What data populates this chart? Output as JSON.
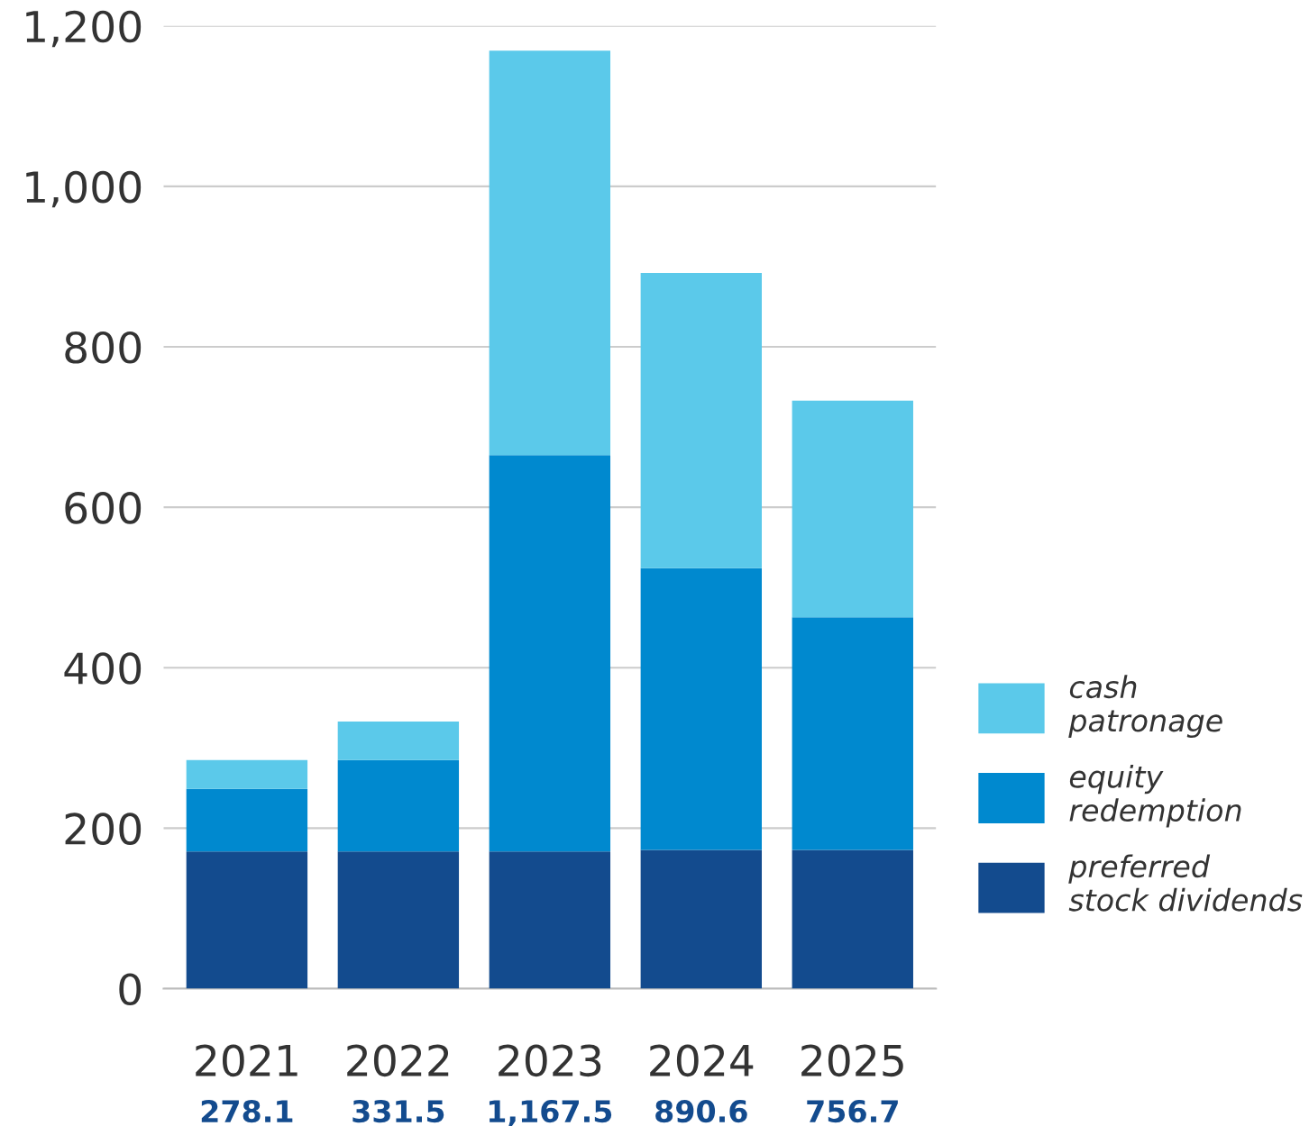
{
  "chart_data": {
    "type": "bar",
    "stacked": true,
    "categories": [
      "2021",
      "2022",
      "2023",
      "2024",
      "2025"
    ],
    "series": [
      {
        "name": "preferred\nstock dividends",
        "color": "#134b8e",
        "values": [
          171,
          171,
          171,
          173,
          173
        ]
      },
      {
        "name": "equity\nredemption",
        "color": "#0089cf",
        "values": [
          78,
          114,
          494,
          351,
          290
        ]
      },
      {
        "name": "cash\npatronage",
        "color": "#5bc9ea",
        "values": [
          36,
          48,
          504,
          368,
          270
        ]
      }
    ],
    "annotations": [
      "278.1",
      "331.5",
      "1,167.5",
      "890.6",
      "756.7"
    ],
    "ylim": [
      0,
      1200
    ],
    "yticks": [
      {
        "value": 0,
        "label": "0"
      },
      {
        "value": 200,
        "label": "200"
      },
      {
        "value": 400,
        "label": "400"
      },
      {
        "value": 600,
        "label": "600"
      },
      {
        "value": 800,
        "label": "800"
      },
      {
        "value": 1000,
        "label": "1,000"
      },
      {
        "value": 1200,
        "label": "1,200"
      }
    ],
    "grid": "y",
    "legend": "right"
  }
}
